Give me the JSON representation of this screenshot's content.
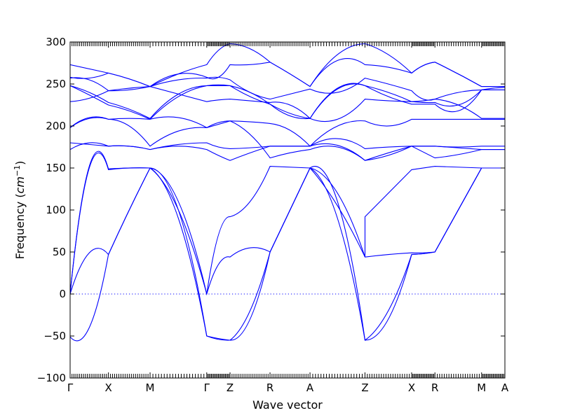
{
  "chart_data": {
    "type": "line",
    "title": "",
    "xlabel": "Wave vector",
    "ylabel": "Frequency (cm⁻¹)",
    "ylabel_parts": {
      "text": "Frequency (",
      "unit": "cm",
      "exp": "−1",
      "close": ")"
    },
    "ylim": [
      -100,
      300
    ],
    "yticks": [
      -100,
      -50,
      0,
      50,
      100,
      150,
      200,
      250,
      300
    ],
    "ytick_labels": [
      "−100",
      "−50",
      "0",
      "50",
      "100",
      "150",
      "200",
      "250",
      "300"
    ],
    "grid": false,
    "zero_line": {
      "y": 0,
      "style": "dotted",
      "color": "#0000ff"
    },
    "line_color": "#0000ff",
    "xlim": [
      0,
      13.05
    ],
    "high_symmetry_points": [
      {
        "label": "Γ",
        "x": 0
      },
      {
        "label": "X",
        "x": 1.15
      },
      {
        "label": "M",
        "x": 2.4
      },
      {
        "label": "Γ",
        "x": 4.1
      },
      {
        "label": "Z",
        "x": 4.8
      },
      {
        "label": "R",
        "x": 6.0
      },
      {
        "label": "A",
        "x": 7.2
      },
      {
        "label": "Z",
        "x": 8.85
      },
      {
        "label": "X",
        "x": 10.25
      },
      {
        "label": "R",
        "x": 10.95
      },
      {
        "label": "M",
        "x": 12.35
      },
      {
        "label": "A",
        "x": 13.05
      }
    ],
    "segments": [
      {
        "from": "Γ",
        "to": "X",
        "bands": [
          [
            0,
            49,
            47
          ],
          [
            0,
            150,
            148
          ],
          [
            0,
            152,
            149
          ],
          [
            -51,
            -40,
            47
          ],
          [
            172,
            180,
            176
          ],
          [
            180,
            178,
            176
          ],
          [
            198,
            210,
            208
          ],
          [
            198,
            209,
            208
          ],
          [
            229,
            233,
            242
          ],
          [
            248,
            237,
            225
          ],
          [
            248,
            240,
            228
          ],
          [
            257,
            255,
            242
          ],
          [
            258,
            257,
            263
          ],
          [
            273,
            268,
            263
          ]
        ]
      },
      {
        "from": "X",
        "to": "M",
        "bands": [
          [
            47,
            100,
            150
          ],
          [
            148,
            150,
            150
          ],
          [
            149,
            150,
            150
          ],
          [
            47,
            100,
            150
          ],
          [
            176,
            176,
            172
          ],
          [
            176,
            176,
            172
          ],
          [
            208,
            200,
            176
          ],
          [
            208,
            209,
            208
          ],
          [
            242,
            243,
            247
          ],
          [
            225,
            218,
            208
          ],
          [
            228,
            220,
            209
          ],
          [
            242,
            245,
            247
          ],
          [
            263,
            256,
            247
          ],
          [
            263,
            256,
            247
          ]
        ]
      },
      {
        "from": "M",
        "to": "Γ",
        "bands": [
          [
            150,
            100,
            -50
          ],
          [
            150,
            100,
            0
          ],
          [
            150,
            110,
            0
          ],
          [
            150,
            90,
            -50
          ],
          [
            172,
            178,
            180
          ],
          [
            172,
            176,
            172
          ],
          [
            176,
            194,
            198
          ],
          [
            208,
            210,
            198
          ],
          [
            247,
            238,
            229
          ],
          [
            208,
            235,
            248
          ],
          [
            209,
            238,
            248
          ],
          [
            247,
            255,
            257
          ],
          [
            247,
            262,
            258
          ],
          [
            247,
            262,
            273
          ]
        ]
      },
      {
        "from": "Γ",
        "to": "Z",
        "bands": [
          [
            -50,
            -54,
            -55
          ],
          [
            0,
            70,
            92
          ],
          [
            0,
            35,
            44
          ],
          [
            -50,
            -53,
            -55
          ],
          [
            180,
            175,
            173
          ],
          [
            172,
            165,
            159
          ],
          [
            198,
            204,
            206
          ],
          [
            198,
            202,
            206
          ],
          [
            229,
            231,
            232
          ],
          [
            248,
            248,
            248
          ],
          [
            248,
            249,
            248
          ],
          [
            257,
            258,
            255
          ],
          [
            258,
            258,
            273
          ],
          [
            273,
            290,
            298
          ]
        ]
      },
      {
        "from": "Z",
        "to": "R",
        "bands": [
          [
            -55,
            -20,
            50
          ],
          [
            92,
            110,
            152
          ],
          [
            44,
            55,
            50
          ],
          [
            -55,
            -30,
            50
          ],
          [
            173,
            174,
            176
          ],
          [
            159,
            168,
            176
          ],
          [
            206,
            205,
            203
          ],
          [
            206,
            190,
            162
          ],
          [
            232,
            230,
            228
          ],
          [
            248,
            240,
            226
          ],
          [
            248,
            235,
            226
          ],
          [
            255,
            240,
            232
          ],
          [
            273,
            273,
            276
          ],
          [
            298,
            292,
            276
          ]
        ]
      },
      {
        "from": "R",
        "to": "A",
        "bands": [
          [
            50,
            100,
            150
          ],
          [
            152,
            151,
            150
          ],
          [
            50,
            100,
            150
          ],
          [
            50,
            100,
            150
          ],
          [
            176,
            176,
            176
          ],
          [
            176,
            176,
            176
          ],
          [
            203,
            195,
            176
          ],
          [
            162,
            168,
            172
          ],
          [
            228,
            225,
            209
          ],
          [
            226,
            215,
            209
          ],
          [
            226,
            212,
            209
          ],
          [
            232,
            238,
            244
          ],
          [
            276,
            262,
            247
          ],
          [
            276,
            262,
            247
          ]
        ]
      },
      {
        "from": "A",
        "to": "Z",
        "bands": [
          [
            150,
            110,
            -55
          ],
          [
            150,
            120,
            44
          ],
          [
            150,
            105,
            44
          ],
          [
            150,
            90,
            -55
          ],
          [
            176,
            185,
            173
          ],
          [
            176,
            177,
            159
          ],
          [
            176,
            200,
            206
          ],
          [
            172,
            175,
            159
          ],
          [
            209,
            208,
            232
          ],
          [
            209,
            244,
            248
          ],
          [
            209,
            245,
            248
          ],
          [
            244,
            240,
            257
          ],
          [
            247,
            285,
            298
          ],
          [
            247,
            278,
            273
          ]
        ]
      },
      {
        "from": "Z",
        "to": "X",
        "bands": [
          [
            -55,
            -30,
            47
          ],
          [
            92,
            120,
            148
          ],
          [
            44,
            47,
            49
          ],
          [
            -55,
            -20,
            47
          ],
          [
            173,
            175,
            176
          ],
          [
            159,
            165,
            176
          ],
          [
            206,
            200,
            208
          ],
          [
            159,
            168,
            176
          ],
          [
            232,
            230,
            229
          ],
          [
            248,
            235,
            226
          ],
          [
            248,
            240,
            229
          ],
          [
            257,
            250,
            242
          ],
          [
            298,
            285,
            263
          ],
          [
            273,
            270,
            263
          ]
        ]
      },
      {
        "from": "X",
        "to": "R",
        "bands": [
          [
            47,
            48,
            50
          ],
          [
            148,
            150,
            152
          ],
          [
            49,
            49,
            50
          ],
          [
            47,
            48,
            50
          ],
          [
            176,
            176,
            176
          ],
          [
            176,
            176,
            176
          ],
          [
            208,
            208,
            208
          ],
          [
            176,
            169,
            162
          ],
          [
            229,
            228,
            228
          ],
          [
            226,
            226,
            226
          ],
          [
            229,
            230,
            232
          ],
          [
            242,
            232,
            232
          ],
          [
            263,
            272,
            276
          ],
          [
            263,
            272,
            276
          ]
        ]
      },
      {
        "from": "R",
        "to": "M",
        "bands": [
          [
            50,
            100,
            150
          ],
          [
            152,
            151,
            150
          ],
          [
            50,
            100,
            150
          ],
          [
            50,
            100,
            150
          ],
          [
            176,
            175,
            176
          ],
          [
            176,
            174,
            172
          ],
          [
            208,
            208,
            208
          ],
          [
            162,
            166,
            172
          ],
          [
            228,
            225,
            243
          ],
          [
            226,
            218,
            243
          ],
          [
            232,
            225,
            209
          ],
          [
            232,
            240,
            243
          ],
          [
            276,
            262,
            247
          ],
          [
            276,
            262,
            247
          ]
        ]
      },
      {
        "from": "M",
        "to": "A",
        "bands": [
          [
            150,
            150,
            150
          ],
          [
            150,
            150,
            150
          ],
          [
            150,
            150,
            150
          ],
          [
            150,
            150,
            150
          ],
          [
            176,
            176,
            176
          ],
          [
            172,
            172,
            172
          ],
          [
            208,
            208,
            208
          ],
          [
            172,
            172,
            172
          ],
          [
            243,
            243,
            243
          ],
          [
            243,
            243,
            243
          ],
          [
            209,
            209,
            209
          ],
          [
            243,
            245,
            246
          ],
          [
            247,
            247,
            247
          ],
          [
            247,
            247,
            247
          ]
        ]
      }
    ]
  }
}
